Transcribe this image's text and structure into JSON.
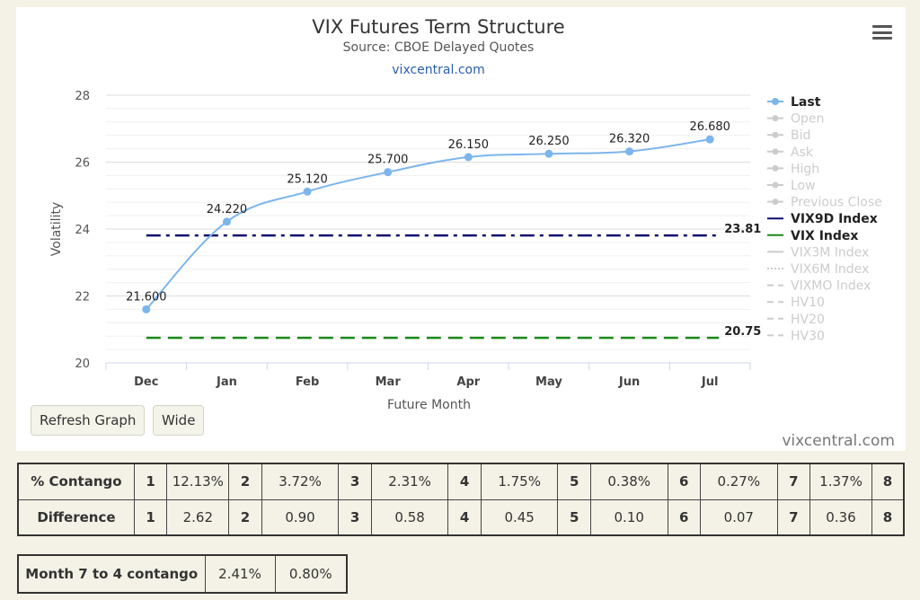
{
  "chart_data": {
    "type": "line",
    "title": "VIX Futures Term Structure",
    "subtitle": "Source: CBOE Delayed Quotes",
    "link": "vixcentral.com",
    "xlabel": "Future Month",
    "ylabel": "Volatility",
    "categories": [
      "Dec",
      "Jan",
      "Feb",
      "Mar",
      "Apr",
      "May",
      "Jun",
      "Jul"
    ],
    "ylim": [
      20,
      28
    ],
    "yticks": [
      20,
      22,
      24,
      26,
      28
    ],
    "series": [
      {
        "name": "Last",
        "values": [
          21.6,
          24.22,
          25.12,
          25.7,
          26.15,
          26.25,
          26.32,
          26.68
        ],
        "labels": [
          "21.600",
          "24.220",
          "25.120",
          "25.700",
          "26.150",
          "26.250",
          "26.320",
          "26.680"
        ],
        "color": "#7cb5ec"
      },
      {
        "name": "VIX9D Index",
        "value": 23.81,
        "label": "23.81",
        "color": "#0d0d70"
      },
      {
        "name": "VIX Index",
        "value": 20.75,
        "label": "20.75",
        "color": "#1a8a1a"
      }
    ],
    "legend": {
      "placement": "right",
      "items": [
        {
          "label": "Last",
          "active": true,
          "color": "#7cb5ec"
        },
        {
          "label": "Open",
          "active": false
        },
        {
          "label": "Bid",
          "active": false
        },
        {
          "label": "Ask",
          "active": false
        },
        {
          "label": "High",
          "active": false
        },
        {
          "label": "Low",
          "active": false
        },
        {
          "label": "Previous Close",
          "active": false
        },
        {
          "label": "VIX9D Index",
          "active": true,
          "color": "#0d0d70"
        },
        {
          "label": "VIX Index",
          "active": true,
          "color": "#1a8a1a"
        },
        {
          "label": "VIX3M Index",
          "active": false
        },
        {
          "label": "VIX6M Index",
          "active": false
        },
        {
          "label": "VIXMO Index",
          "active": false
        },
        {
          "label": "HV10",
          "active": false
        },
        {
          "label": "HV20",
          "active": false
        },
        {
          "label": "HV30",
          "active": false
        }
      ]
    }
  },
  "buttons": {
    "refresh": "Refresh Graph",
    "wide": "Wide"
  },
  "credit": "vixcentral.com",
  "stats": {
    "contango_label": "% Contango",
    "contango": [
      {
        "n": "1",
        "v": "12.13%"
      },
      {
        "n": "2",
        "v": "3.72%"
      },
      {
        "n": "3",
        "v": "2.31%"
      },
      {
        "n": "4",
        "v": "1.75%"
      },
      {
        "n": "5",
        "v": "0.38%"
      },
      {
        "n": "6",
        "v": "0.27%"
      },
      {
        "n": "7",
        "v": "1.37%"
      },
      {
        "n": "8",
        "v": ""
      }
    ],
    "difference_label": "Difference",
    "difference": [
      {
        "n": "1",
        "v": "2.62"
      },
      {
        "n": "2",
        "v": "0.90"
      },
      {
        "n": "3",
        "v": "0.58"
      },
      {
        "n": "4",
        "v": "0.45"
      },
      {
        "n": "5",
        "v": "0.10"
      },
      {
        "n": "6",
        "v": "0.07"
      },
      {
        "n": "7",
        "v": "0.36"
      },
      {
        "n": "8",
        "v": ""
      }
    ]
  },
  "ratio": {
    "label": "Month 7 to 4 contango",
    "v1": "2.41%",
    "v2": "0.80%"
  }
}
